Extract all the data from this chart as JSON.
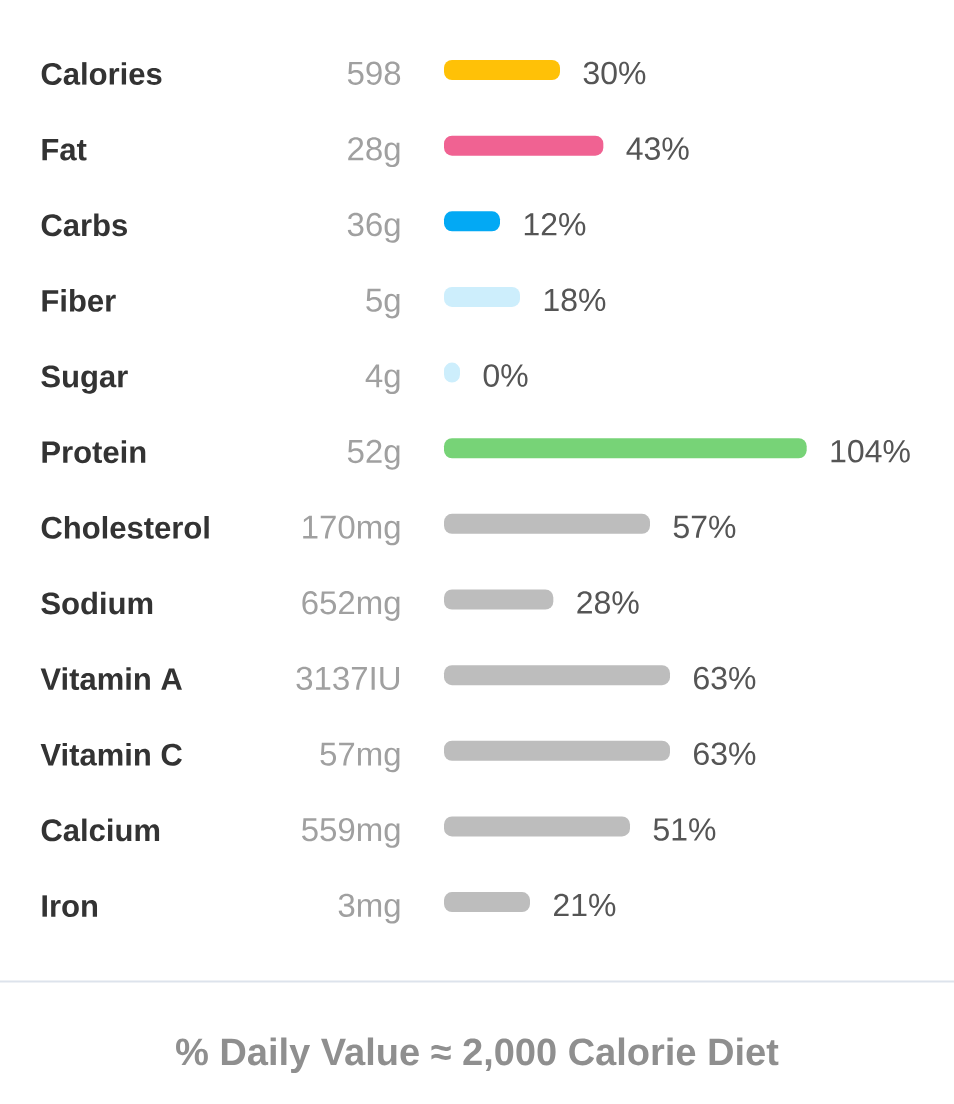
{
  "chart_data": {
    "type": "bar",
    "orientation": "horizontal",
    "categories": [
      "Calories",
      "Fat",
      "Carbs",
      "Fiber",
      "Sugar",
      "Protein",
      "Cholesterol",
      "Sodium",
      "Vitamin A",
      "Vitamin C",
      "Calcium",
      "Iron"
    ],
    "y2_categories": [
      "598",
      "28g",
      "36g",
      "5g",
      "4g",
      "52g",
      "170mg",
      "652mg",
      "3137IU",
      "57mg",
      "559mg",
      "3mg"
    ],
    "values": [
      30,
      43,
      12,
      18,
      0,
      104,
      57,
      28,
      63,
      63,
      51,
      21
    ],
    "value_labels": [
      "30%",
      "43%",
      "12%",
      "18%",
      "0%",
      "104%",
      "57%",
      "28%",
      "63%",
      "63%",
      "51%",
      "21%"
    ],
    "colors": [
      "#ffc107",
      "#f06292",
      "#03a9f4",
      "#cdeefc",
      "#cdeefc",
      "#77d377",
      "#bdbdbd",
      "#bdbdbd",
      "#bdbdbd",
      "#bdbdbd",
      "#bdbdbd",
      "#bdbdbd"
    ],
    "annotations": [
      "% Daily Value ≈ 2,000 Calorie Diet"
    ]
  }
}
